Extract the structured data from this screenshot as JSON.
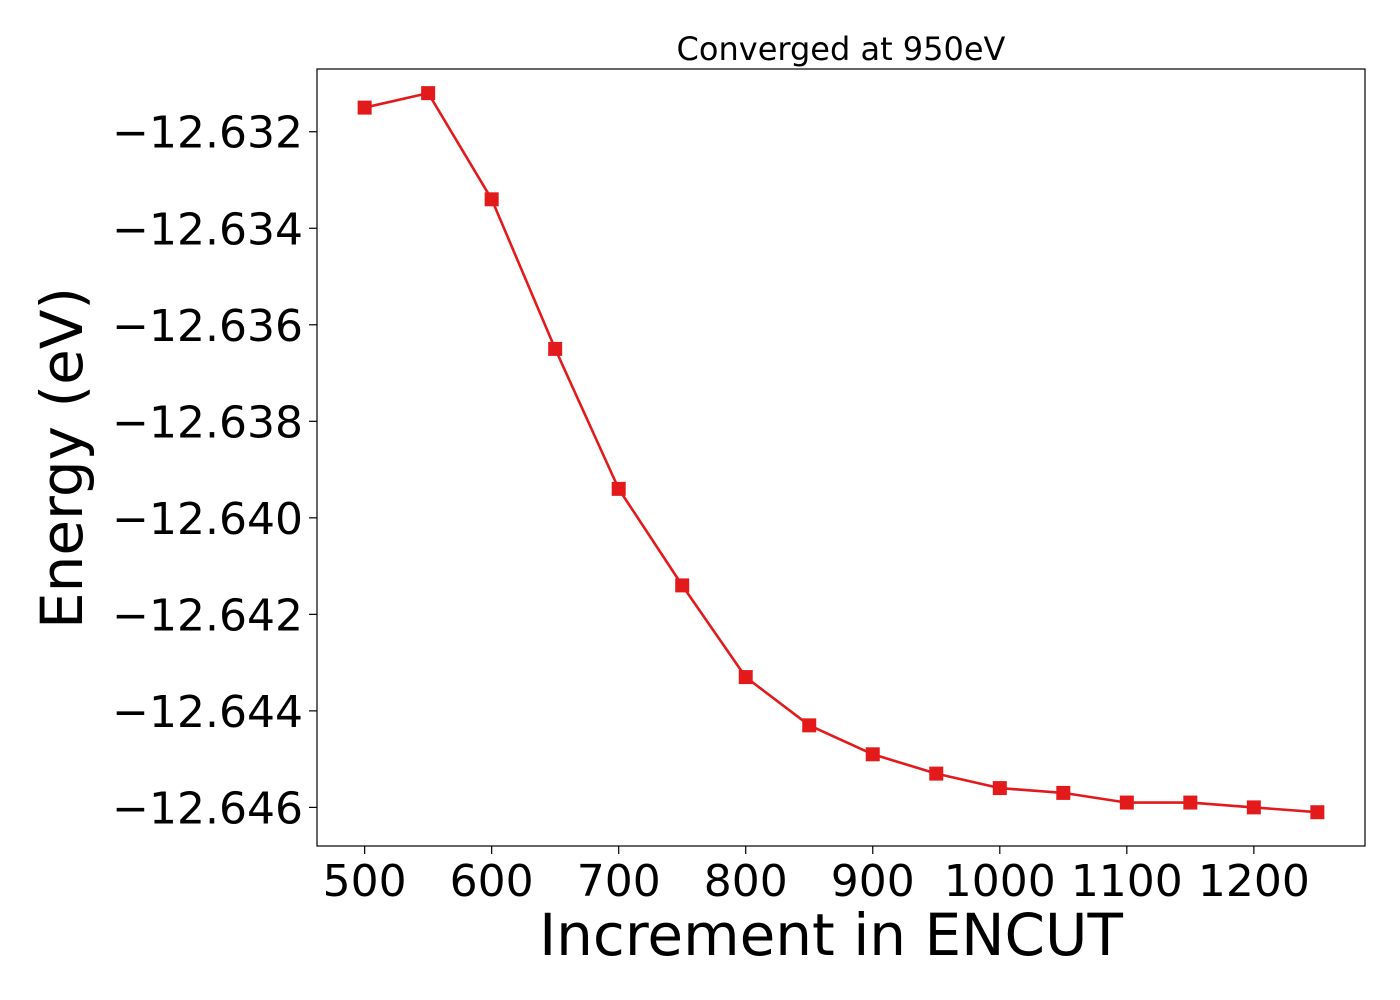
{
  "chart_data": {
    "type": "line",
    "title": "Converged at 950eV",
    "xlabel": "Increment in ENCUT",
    "ylabel": "Energy (eV)",
    "xlim": [
      462.5,
      1287.5
    ],
    "ylim": [
      -12.6468,
      -12.6307
    ],
    "xticks": [
      500,
      600,
      700,
      800,
      900,
      1000,
      1100,
      1200
    ],
    "xtick_labels": [
      "500",
      "600",
      "700",
      "800",
      "900",
      "1000",
      "1100",
      "1200"
    ],
    "yticks": [
      -12.632,
      -12.634,
      -12.636,
      -12.638,
      -12.64,
      -12.642,
      -12.644,
      -12.646
    ],
    "ytick_labels": [
      "−12.632",
      "−12.634",
      "−12.636",
      "−12.638",
      "−12.640",
      "−12.642",
      "−12.644",
      "−12.646"
    ],
    "grid": false,
    "legend": "none",
    "series": [
      {
        "color": "#e31a1c",
        "marker": "square",
        "x": [
          500,
          550,
          600,
          650,
          700,
          750,
          800,
          850,
          900,
          950,
          1000,
          1050,
          1100,
          1150,
          1200,
          1250
        ],
        "y": [
          -12.6315,
          -12.6312,
          -12.6334,
          -12.6365,
          -12.6394,
          -12.6414,
          -12.6433,
          -12.6443,
          -12.6449,
          -12.6453,
          -12.6456,
          -12.6457,
          -12.6459,
          -12.6459,
          -12.646,
          -12.6461
        ]
      }
    ]
  }
}
